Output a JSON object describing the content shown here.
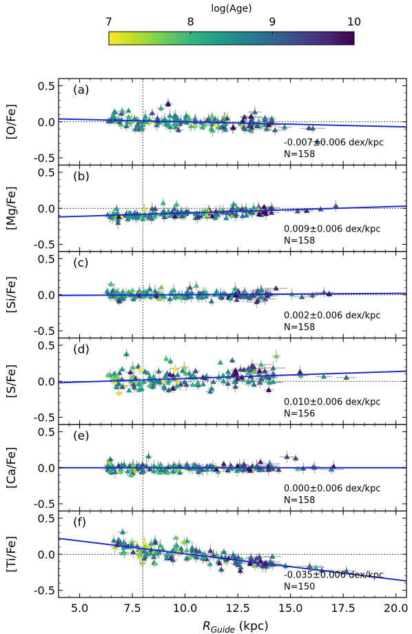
{
  "colorbar": {
    "label": "log(Age)",
    "ticks": [
      7,
      8,
      9,
      10
    ],
    "range": [
      7,
      10
    ],
    "colormap": [
      "#fde725",
      "#b5de2b",
      "#6ece58",
      "#35b779",
      "#1f9e89",
      "#26828e",
      "#31688e",
      "#3e4989",
      "#482878",
      "#440154"
    ]
  },
  "colors": {
    "fit_line": "#1f2bc7",
    "errorbar": "#a8a8a8",
    "zero_line": "#000000",
    "solar_line": "#000000"
  },
  "xaxis": {
    "label_main": "R",
    "label_sub": "Guide",
    "label_unit": " (kpc)",
    "range": [
      4.0,
      20.5
    ],
    "ticks": [
      "5.0",
      "7.5",
      "10.0",
      "12.5",
      "15.0",
      "17.5",
      "20.0"
    ],
    "tick_values": [
      5.0,
      7.5,
      10.0,
      12.5,
      15.0,
      17.5,
      20.0
    ]
  },
  "solar_radius": 8.0,
  "chart_data": [
    {
      "type": "scatter",
      "panel": "(a)",
      "ylabel": "[O/Fe]",
      "ylim": [
        -0.6,
        0.6
      ],
      "yticks": [
        "0.5",
        "0.0",
        "-0.5"
      ],
      "ytick_values": [
        0.5,
        0.0,
        -0.5
      ],
      "fit": {
        "slope": -0.007,
        "x": [
          4.0,
          20.5
        ],
        "y": [
          0.04,
          -0.07
        ]
      },
      "annotation": "-0.007±0.006 dex/kpc",
      "n_label": "N=158",
      "n": 158,
      "spread": 0.08
    },
    {
      "type": "scatter",
      "panel": "(b)",
      "ylabel": "[Mg/Fe]",
      "ylim": [
        -0.6,
        0.6
      ],
      "yticks": [
        "0.5",
        "0.0",
        "-0.5"
      ],
      "ytick_values": [
        0.5,
        0.0,
        -0.5
      ],
      "fit": {
        "slope": 0.009,
        "x": [
          4.0,
          20.5
        ],
        "y": [
          -0.12,
          0.03
        ]
      },
      "annotation": "0.009±0.006 dex/kpc",
      "n_label": "N=158",
      "n": 158,
      "spread": 0.05
    },
    {
      "type": "scatter",
      "panel": "(c)",
      "ylabel": "[Si/Fe]",
      "ylim": [
        -0.6,
        0.6
      ],
      "yticks": [
        "0.5",
        "0.0",
        "-0.5"
      ],
      "ytick_values": [
        0.5,
        0.0,
        -0.5
      ],
      "fit": {
        "slope": 0.002,
        "x": [
          4.0,
          20.5
        ],
        "y": [
          -0.01,
          0.02
        ]
      },
      "annotation": "0.002±0.006 dex/kpc",
      "n_label": "N=158",
      "n": 158,
      "spread": 0.05
    },
    {
      "type": "scatter",
      "panel": "(d)",
      "ylabel": "[S/Fe]",
      "ylim": [
        -0.6,
        0.6
      ],
      "yticks": [
        "0.5",
        "0.0",
        "-0.5"
      ],
      "ytick_values": [
        0.5,
        0.0,
        -0.5
      ],
      "fit": {
        "slope": 0.01,
        "x": [
          4.0,
          20.5
        ],
        "y": [
          -0.02,
          0.14
        ]
      },
      "annotation": "0.010±0.006 dex/kpc",
      "n_label": "N=156",
      "n": 156,
      "spread": 0.12
    },
    {
      "type": "scatter",
      "panel": "(e)",
      "ylabel": "[Ca/Fe]",
      "ylim": [
        -0.6,
        0.6
      ],
      "yticks": [
        "0.5",
        "0.0",
        "-0.5"
      ],
      "ytick_values": [
        0.5,
        0.0,
        -0.5
      ],
      "fit": {
        "slope": 0.0,
        "x": [
          4.0,
          20.5
        ],
        "y": [
          0.0,
          0.0
        ]
      },
      "annotation": "0.000±0.006 dex/kpc",
      "n_label": "N=158",
      "n": 158,
      "spread": 0.05
    },
    {
      "type": "scatter",
      "panel": "(f)",
      "ylabel": "[Ti/Fe]",
      "ylim": [
        -0.6,
        0.6
      ],
      "yticks": [
        "0.5",
        "0.0",
        "-0.5"
      ],
      "ytick_values": [
        0.5,
        0.0,
        -0.5
      ],
      "fit": {
        "slope": -0.035,
        "x": [
          4.0,
          20.5
        ],
        "y": [
          0.22,
          -0.37
        ]
      },
      "annotation": "-0.035±0.006 dex/kpc",
      "n_label": "N=150",
      "n": 150,
      "spread": 0.09
    }
  ]
}
